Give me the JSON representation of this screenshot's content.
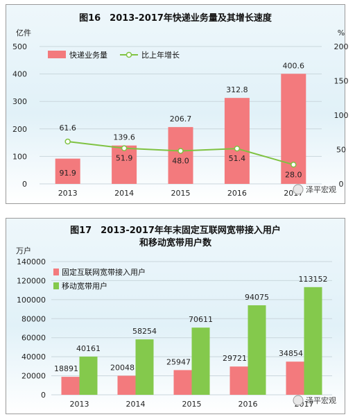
{
  "chart_data": [
    {
      "type": "bar",
      "title": "图16　2013-2017年快递业务量及其增长速度",
      "left_unit": "亿件",
      "right_unit": "%",
      "categories": [
        "2013",
        "2014",
        "2015",
        "2016",
        "2017"
      ],
      "series": [
        {
          "name": "快递业务量",
          "kind": "bar",
          "axis": "left",
          "color": "#f37a7d",
          "values": [
            91.9,
            139.6,
            206.7,
            312.8,
            400.6
          ]
        },
        {
          "name": "比上年增长",
          "kind": "line",
          "axis": "right",
          "color": "#7fc241",
          "values": [
            61.6,
            51.9,
            48.0,
            51.4,
            28.0
          ]
        }
      ],
      "ylim_left": [
        0,
        500
      ],
      "ylim_right": [
        0,
        200
      ],
      "yticks_left": [
        "0",
        "100",
        "200",
        "300",
        "400",
        "500"
      ],
      "yticks_right": [
        "0",
        "50",
        "100",
        "150",
        "200"
      ],
      "bar_labels": [
        "91.9",
        "139.6",
        "206.7",
        "312.8",
        "400.6"
      ],
      "line_labels": [
        "61.6",
        "51.9",
        "48.0",
        "51.4",
        "28.0"
      ],
      "legend_placement": "top-left",
      "grid": true,
      "watermark": "泽平宏观"
    },
    {
      "type": "bar",
      "title": "图17　2013-2017年年末固定互联网宽带接入用户",
      "title_line2": "和移动宽带用户数",
      "left_unit": "万户",
      "categories": [
        "2013",
        "2014",
        "2015",
        "2016",
        "2017"
      ],
      "series": [
        {
          "name": "固定互联网宽带接入用户",
          "color": "#f37a7d",
          "values": [
            18891,
            20048,
            25947,
            29721,
            34854
          ]
        },
        {
          "name": "移动宽带用户",
          "color": "#84c94c",
          "values": [
            40161,
            58254,
            70611,
            94075,
            113152
          ]
        }
      ],
      "ylim": [
        0,
        140000
      ],
      "yticks": [
        "0",
        "20000",
        "40000",
        "60000",
        "80000",
        "100000",
        "120000",
        "140000"
      ],
      "legend_placement": "top-left",
      "grid": true,
      "watermark": "泽平宏观"
    }
  ]
}
